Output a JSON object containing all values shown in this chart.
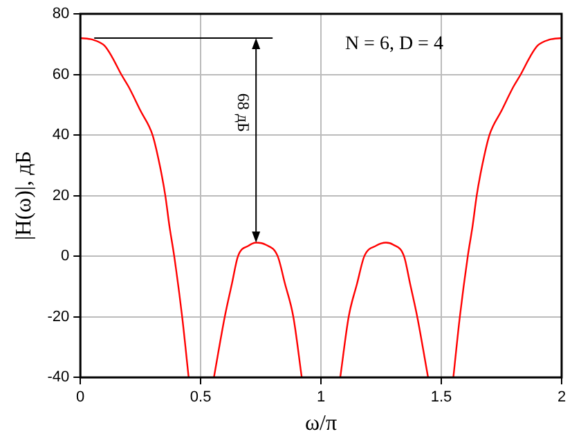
{
  "chart_data": {
    "type": "line",
    "xlabel": "ω/π",
    "ylabel": "|H(ω)|, дБ",
    "xlim": [
      0,
      2
    ],
    "xticks": [
      0,
      0.5,
      1,
      1.5,
      2
    ],
    "ylim": [
      -40,
      80
    ],
    "yticks": [
      -40,
      -20,
      0,
      20,
      40,
      60,
      80
    ],
    "grid": true,
    "legend": false,
    "marker": "none",
    "line_style": "solid",
    "annotations": [
      "N = 6, D = 4",
      "68 дБ"
    ],
    "series": [
      {
        "color": "#ff0000",
        "x": [
          0,
          0.05,
          0.1,
          0.13,
          0.17,
          0.2,
          0.25,
          0.3,
          0.33,
          0.353,
          0.37,
          0.39,
          0.423,
          0.45,
          0.5,
          0.555,
          0.6,
          0.63,
          0.655,
          0.7,
          0.73,
          0.77,
          0.82,
          0.85,
          0.885,
          0.92,
          1,
          1.08,
          1.115,
          1.15,
          1.18,
          1.23,
          1.27,
          1.3,
          1.345,
          1.37,
          1.4,
          1.445,
          1.5,
          1.55,
          1.577,
          1.61,
          1.63,
          1.647,
          1.67,
          1.7,
          1.75,
          1.8,
          1.83,
          1.87,
          1.9,
          1.95,
          2
        ],
        "values": [
          72,
          71.5,
          69.5,
          66,
          60,
          56,
          48,
          40,
          30,
          20,
          10,
          0,
          -20,
          -40,
          null,
          -40,
          -20,
          -9,
          0,
          3.5,
          4.5,
          3.8,
          0,
          -9,
          -20,
          -40,
          null,
          -40,
          -20,
          -9,
          0,
          3.5,
          4.5,
          3.8,
          0,
          -9,
          -20,
          -40,
          null,
          -40,
          -20,
          0,
          10,
          20,
          30,
          40,
          48,
          56,
          60,
          66,
          69.5,
          71.5,
          72
        ]
      }
    ]
  }
}
